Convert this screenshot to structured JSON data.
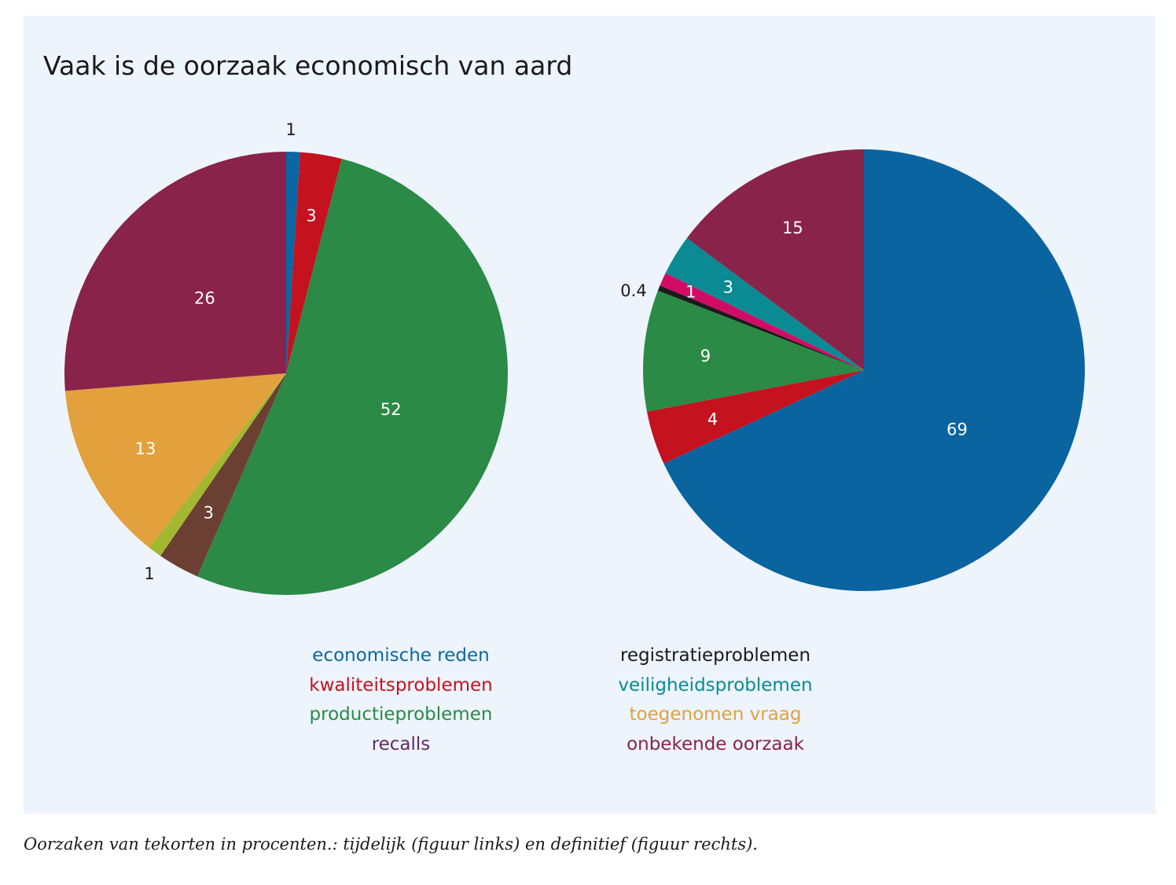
{
  "title": "Vaak is de oorzaak economisch van aard",
  "caption": "Oorzaken van tekorten in procenten.: tijdelijk (figuur links) en definitief (figuur rechts).",
  "legend": {
    "left": [
      {
        "label": "economische reden",
        "color": "#0a67a3"
      },
      {
        "label": "kwaliteitsproblemen",
        "color": "#c4121f"
      },
      {
        "label": "productieproblemen",
        "color": "#2b8a46"
      },
      {
        "label": "recalls",
        "color": "#5e2a6b"
      }
    ],
    "right": [
      {
        "label": "registratieproblemen",
        "color": "#1a1a1a"
      },
      {
        "label": "veiligheidsproblemen",
        "color": "#0a8a93"
      },
      {
        "label": "toegenomen vraag",
        "color": "#e2a13c"
      },
      {
        "label": "onbekende oorzaak",
        "color": "#8a2349"
      }
    ]
  },
  "chart_data": [
    {
      "type": "pie",
      "start": "12 o'clock, clockwise",
      "slices": [
        {
          "label": "1",
          "value": 1,
          "color": "#0a67a3",
          "label_outside": true
        },
        {
          "label": "3",
          "value": 3,
          "color": "#c4121f"
        },
        {
          "label": "52",
          "value": 52,
          "color": "#2b8a46"
        },
        {
          "label": "3",
          "value": 3,
          "color": "#6b3f32"
        },
        {
          "label": "1",
          "value": 1,
          "color": "#a2b830",
          "label_outside": true
        },
        {
          "label": "13",
          "value": 13,
          "color": "#e2a13c"
        },
        {
          "label": "26",
          "value": 26,
          "color": "#8a2349"
        }
      ]
    },
    {
      "type": "pie",
      "start": "12 o'clock, clockwise",
      "slices": [
        {
          "label": "69",
          "value": 69,
          "color": "#0a64a0"
        },
        {
          "label": "4",
          "value": 4,
          "color": "#c4121f"
        },
        {
          "label": "9",
          "value": 9,
          "color": "#2b8a46"
        },
        {
          "label": "0.4",
          "value": 0.4,
          "color": "#1a1a1a",
          "label_outside": true
        },
        {
          "label": "1",
          "value": 1,
          "color": "#d10c65"
        },
        {
          "label": "3",
          "value": 3,
          "color": "#0a8a93"
        },
        {
          "label": "15",
          "value": 15,
          "color": "#8a2349"
        }
      ]
    }
  ]
}
